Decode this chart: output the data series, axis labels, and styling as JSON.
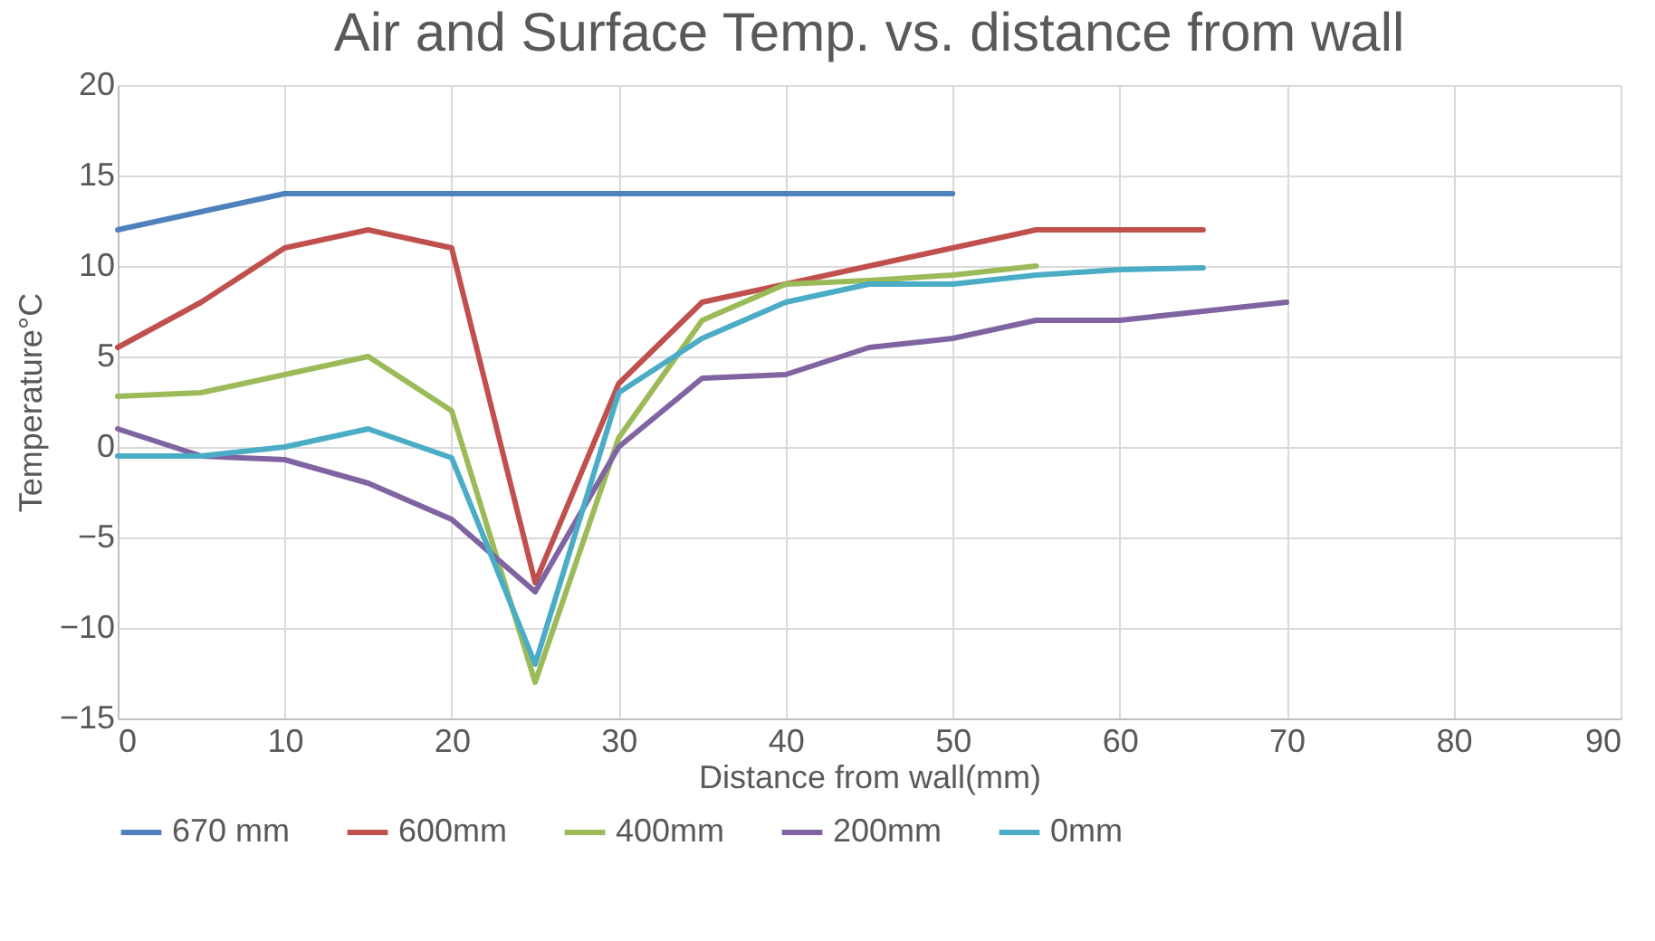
{
  "chart_data": {
    "type": "line",
    "title": "Air and Surface Temp. vs. distance from wall",
    "xlabel": "Distance from wall(mm)",
    "ylabel": "Temperature°C",
    "x": [
      0,
      5,
      10,
      15,
      20,
      25,
      30,
      35,
      40,
      45,
      50,
      55,
      60,
      65,
      70
    ],
    "series": [
      {
        "name": "670 mm",
        "color": "#4f81bd",
        "values": [
          12,
          13,
          14,
          14,
          14,
          14,
          14,
          14,
          14,
          14,
          14,
          null,
          null,
          null,
          null
        ]
      },
      {
        "name": "600mm",
        "color": "#c0504d",
        "values": [
          5.5,
          8,
          11,
          12,
          11,
          -7.5,
          3.5,
          8,
          9,
          10,
          11,
          12,
          12,
          12,
          null
        ]
      },
      {
        "name": "400mm",
        "color": "#9bbb59",
        "values": [
          2.8,
          3,
          4,
          5,
          2,
          -13,
          0.5,
          7,
          9,
          9.2,
          9.5,
          10,
          null,
          null,
          null
        ]
      },
      {
        "name": "200mm",
        "color": "#8064a2",
        "values": [
          1,
          -0.5,
          -0.7,
          -2,
          -4,
          -8,
          0,
          3.8,
          4,
          5.5,
          6,
          7,
          7,
          7.5,
          8
        ]
      },
      {
        "name": "0mm",
        "color": "#4bacc6",
        "values": [
          -0.5,
          -0.5,
          0,
          1,
          -0.6,
          -12,
          3,
          6,
          8,
          9,
          9,
          9.5,
          9.8,
          9.9,
          null
        ]
      }
    ],
    "xlim": [
      0,
      90
    ],
    "xticks": [
      0,
      10,
      20,
      30,
      40,
      50,
      60,
      70,
      80,
      90
    ],
    "ylim": [
      -15,
      20
    ],
    "yticks": [
      -15,
      -10,
      -5,
      0,
      5,
      10,
      15,
      20
    ],
    "grid": true,
    "legend": "bottom",
    "line_style": "solid"
  }
}
